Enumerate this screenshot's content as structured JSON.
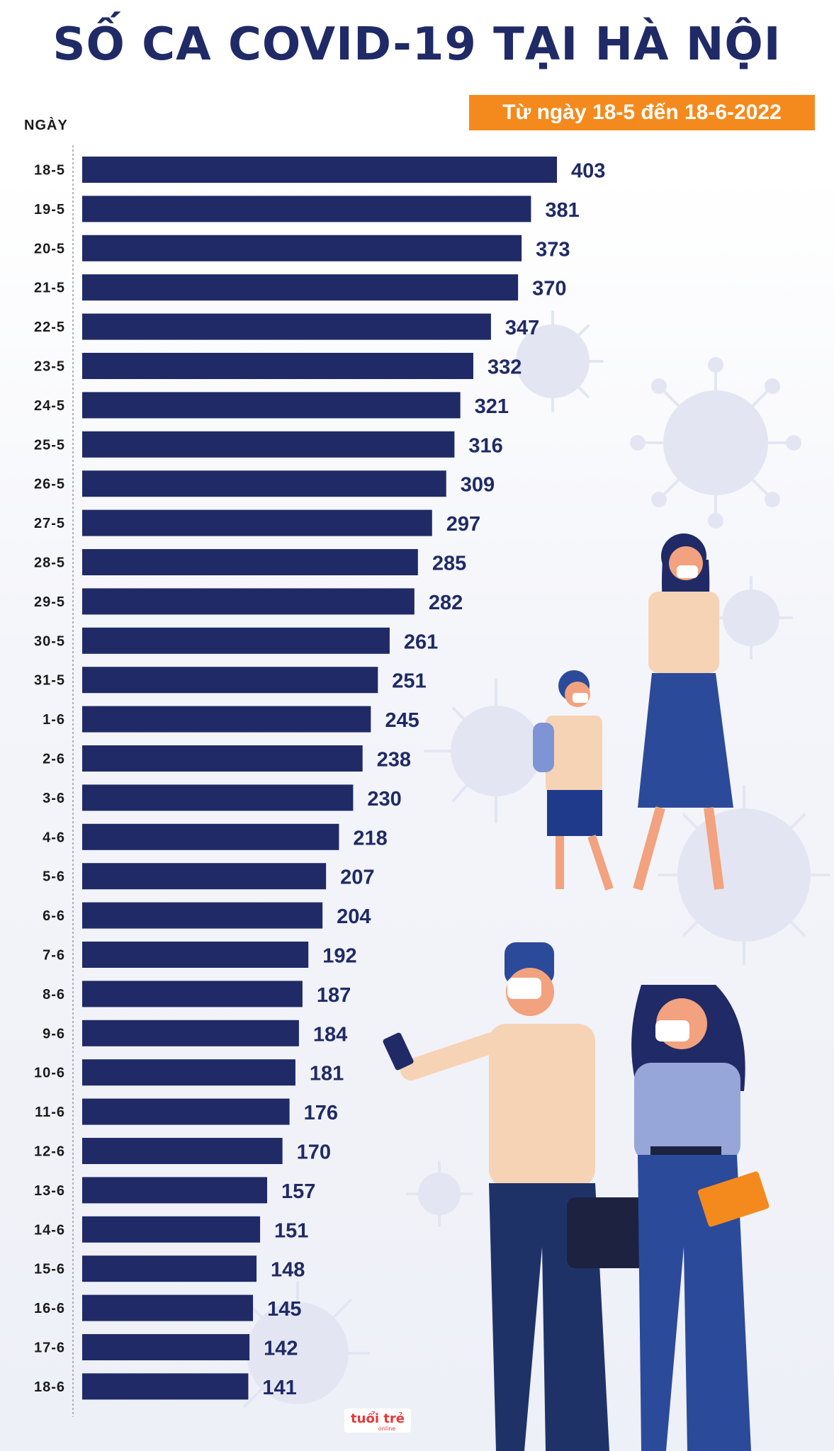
{
  "title": "SỐ CA COVID-19 TẠI HÀ NỘI",
  "subtitle": "Từ ngày 18-5 đến 18-6-2022",
  "logo_text": "tuổi trẻ online",
  "colors": {
    "bar": "#1f2a66",
    "accent": "#f48a1d",
    "virus": "#d9dcef"
  },
  "chart_data": {
    "type": "bar",
    "orientation": "horizontal",
    "title": "SỐ CA COVID-19 TẠI HÀ NỘI",
    "subtitle": "Từ ngày 18-5 đến 18-6-2022",
    "ylabel": "NGÀY",
    "xlabel": "",
    "categories": [
      "18-5",
      "19-5",
      "20-5",
      "21-5",
      "22-5",
      "23-5",
      "24-5",
      "25-5",
      "26-5",
      "27-5",
      "28-5",
      "29-5",
      "30-5",
      "31-5",
      "1-6",
      "2-6",
      "3-6",
      "4-6",
      "5-6",
      "6-6",
      "7-6",
      "8-6",
      "9-6",
      "10-6",
      "11-6",
      "12-6",
      "13-6",
      "14-6",
      "15-6",
      "16-6",
      "17-6",
      "18-6"
    ],
    "values": [
      403,
      381,
      373,
      370,
      347,
      332,
      321,
      316,
      309,
      297,
      285,
      282,
      261,
      251,
      245,
      238,
      230,
      218,
      207,
      204,
      192,
      187,
      184,
      181,
      176,
      170,
      157,
      151,
      148,
      145,
      142,
      141
    ],
    "xlim": [
      0,
      403
    ],
    "grid": false,
    "legend": "none"
  }
}
